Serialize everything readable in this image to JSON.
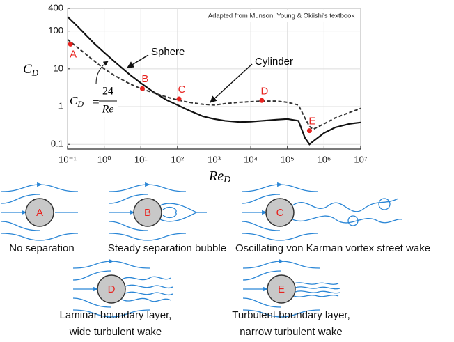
{
  "chart_data": {
    "type": "line",
    "xscale": "log",
    "yscale": "log",
    "grid": true,
    "xlabel": {
      "text": "Re",
      "subscript": "D"
    },
    "ylabel": {
      "text": "C",
      "subscript": "D"
    },
    "note": "Adapted from Munson, Young & Okiishi's textbook",
    "formula": {
      "lhs": "C",
      "lhs_subscript": "D",
      "equals": "=",
      "numerator": "24",
      "denominator": "Re"
    },
    "xlim": [
      0.1,
      10000000
    ],
    "ylim": [
      0.075,
      400
    ],
    "xticks": [
      {
        "value": 0.1,
        "label": "10⁻¹"
      },
      {
        "value": 1,
        "label": "10⁰"
      },
      {
        "value": 10,
        "label": "10¹"
      },
      {
        "value": 100,
        "label": "10²"
      },
      {
        "value": 1000,
        "label": "10³"
      },
      {
        "value": 10000,
        "label": "10⁴"
      },
      {
        "value": 100000,
        "label": "10⁵"
      },
      {
        "value": 1000000,
        "label": "10⁶"
      },
      {
        "value": 10000000,
        "label": "10⁷"
      }
    ],
    "yticks": [
      0.1,
      1,
      10,
      100,
      400
    ],
    "x": [
      0.1,
      0.2,
      0.5,
      1,
      2,
      5,
      10,
      20,
      50,
      100,
      200,
      500,
      1000,
      2000,
      5000,
      10000,
      20000,
      50000,
      100000,
      200000,
      300000,
      400000,
      500000,
      1000000,
      2000000,
      5000000,
      10000000
    ],
    "series": [
      {
        "name": "Sphere",
        "color": "#111111",
        "dashed": false,
        "values": [
          240,
          125,
          50,
          27,
          15,
          7,
          4.2,
          2.6,
          1.5,
          1.1,
          0.8,
          0.55,
          0.47,
          0.42,
          0.39,
          0.4,
          0.42,
          0.45,
          0.47,
          0.42,
          0.15,
          0.1,
          0.12,
          0.2,
          0.28,
          0.35,
          0.38
        ]
      },
      {
        "name": "Cylinder",
        "color": "#333333",
        "dashed": true,
        "values": [
          60,
          35,
          17,
          10,
          6.5,
          4,
          3,
          2.4,
          1.8,
          1.5,
          1.3,
          1.15,
          1.1,
          1.2,
          1.3,
          1.35,
          1.4,
          1.4,
          1.3,
          1.1,
          0.5,
          0.3,
          0.25,
          0.35,
          0.5,
          0.7,
          0.9
        ]
      }
    ],
    "points": [
      {
        "label": "A",
        "x": 0.12,
        "y": 45,
        "color": "#e8231f"
      },
      {
        "label": "B",
        "x": 11,
        "y": 3,
        "color": "#e8231f"
      },
      {
        "label": "C",
        "x": 110,
        "y": 1.6,
        "color": "#e8231f"
      },
      {
        "label": "D",
        "x": 20000,
        "y": 1.45,
        "color": "#e8231f"
      },
      {
        "label": "E",
        "x": 400000,
        "y": 0.23,
        "color": "#e8231f"
      }
    ]
  },
  "flow_diagrams": [
    {
      "letter": "A",
      "caption": [
        "No separation"
      ]
    },
    {
      "letter": "B",
      "caption": [
        "Steady separation bubble"
      ]
    },
    {
      "letter": "C",
      "caption": [
        "Oscillating von Karman vortex street wake"
      ]
    },
    {
      "letter": "D",
      "caption": [
        "Laminar boundary layer,",
        "wide turbulent wake"
      ]
    },
    {
      "letter": "E",
      "caption": [
        "Turbulent boundary layer,",
        "narrow turbulent wake"
      ]
    }
  ]
}
